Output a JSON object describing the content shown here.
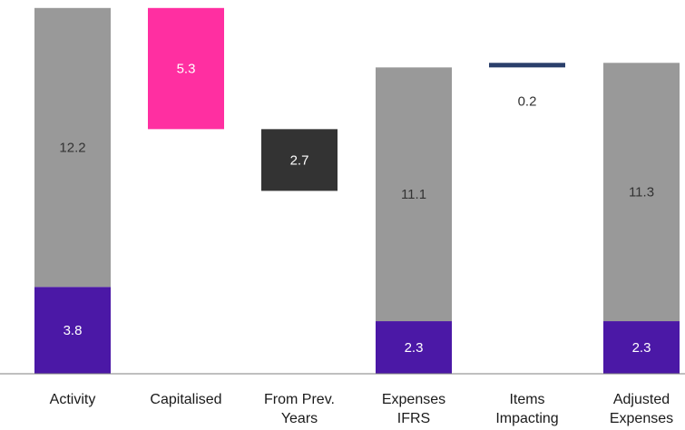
{
  "chart_data": {
    "type": "bar",
    "subtype": "waterfall",
    "ylim": [
      0,
      17.3
    ],
    "grid": false,
    "legend": "none",
    "colors": {
      "grey": "#999999",
      "purple": "#4b18a6",
      "pink": "#ff2fa1",
      "dark": "#333333",
      "navy": "#2b3f6b",
      "light_label": "#ffffff",
      "dark_label": "#333333",
      "axis": "#7f7f7f"
    },
    "categories": [
      {
        "lines": [
          "Activity"
        ]
      },
      {
        "lines": [
          "Capitalised"
        ]
      },
      {
        "lines": [
          "From Prev.",
          "Years"
        ]
      },
      {
        "lines": [
          "Expenses",
          "IFRS"
        ]
      },
      {
        "lines": [
          "Items",
          "Impacting"
        ]
      },
      {
        "lines": [
          "Adjusted",
          "Expenses"
        ]
      }
    ],
    "segments": [
      {
        "category": 0,
        "start": 0,
        "value": 3.8,
        "label": "3.8",
        "color": "purple",
        "label_color": "light_label"
      },
      {
        "category": 0,
        "start": 3.8,
        "value": 12.2,
        "label": "12.2",
        "color": "grey",
        "label_color": "dark_label"
      },
      {
        "category": 1,
        "start": 10.7,
        "value": 5.3,
        "label": "5.3",
        "color": "pink",
        "label_color": "light_label"
      },
      {
        "category": 2,
        "start": 8.0,
        "value": 2.7,
        "label": "2.7",
        "color": "dark",
        "label_color": "light_label"
      },
      {
        "category": 3,
        "start": 0,
        "value": 2.3,
        "label": "2.3",
        "color": "purple",
        "label_color": "light_label"
      },
      {
        "category": 3,
        "start": 2.3,
        "value": 11.1,
        "label": "11.1",
        "color": "grey",
        "label_color": "dark_label"
      },
      {
        "category": 4,
        "start": 13.4,
        "value": 0.2,
        "label": "0.2",
        "color": "navy",
        "label_color": "dark_label",
        "label_below": true
      },
      {
        "category": 5,
        "start": 0,
        "value": 2.3,
        "label": "2.3",
        "color": "purple",
        "label_color": "light_label"
      },
      {
        "category": 5,
        "start": 2.3,
        "value": 11.3,
        "label": "11.3",
        "color": "grey",
        "label_color": "dark_label"
      }
    ]
  }
}
